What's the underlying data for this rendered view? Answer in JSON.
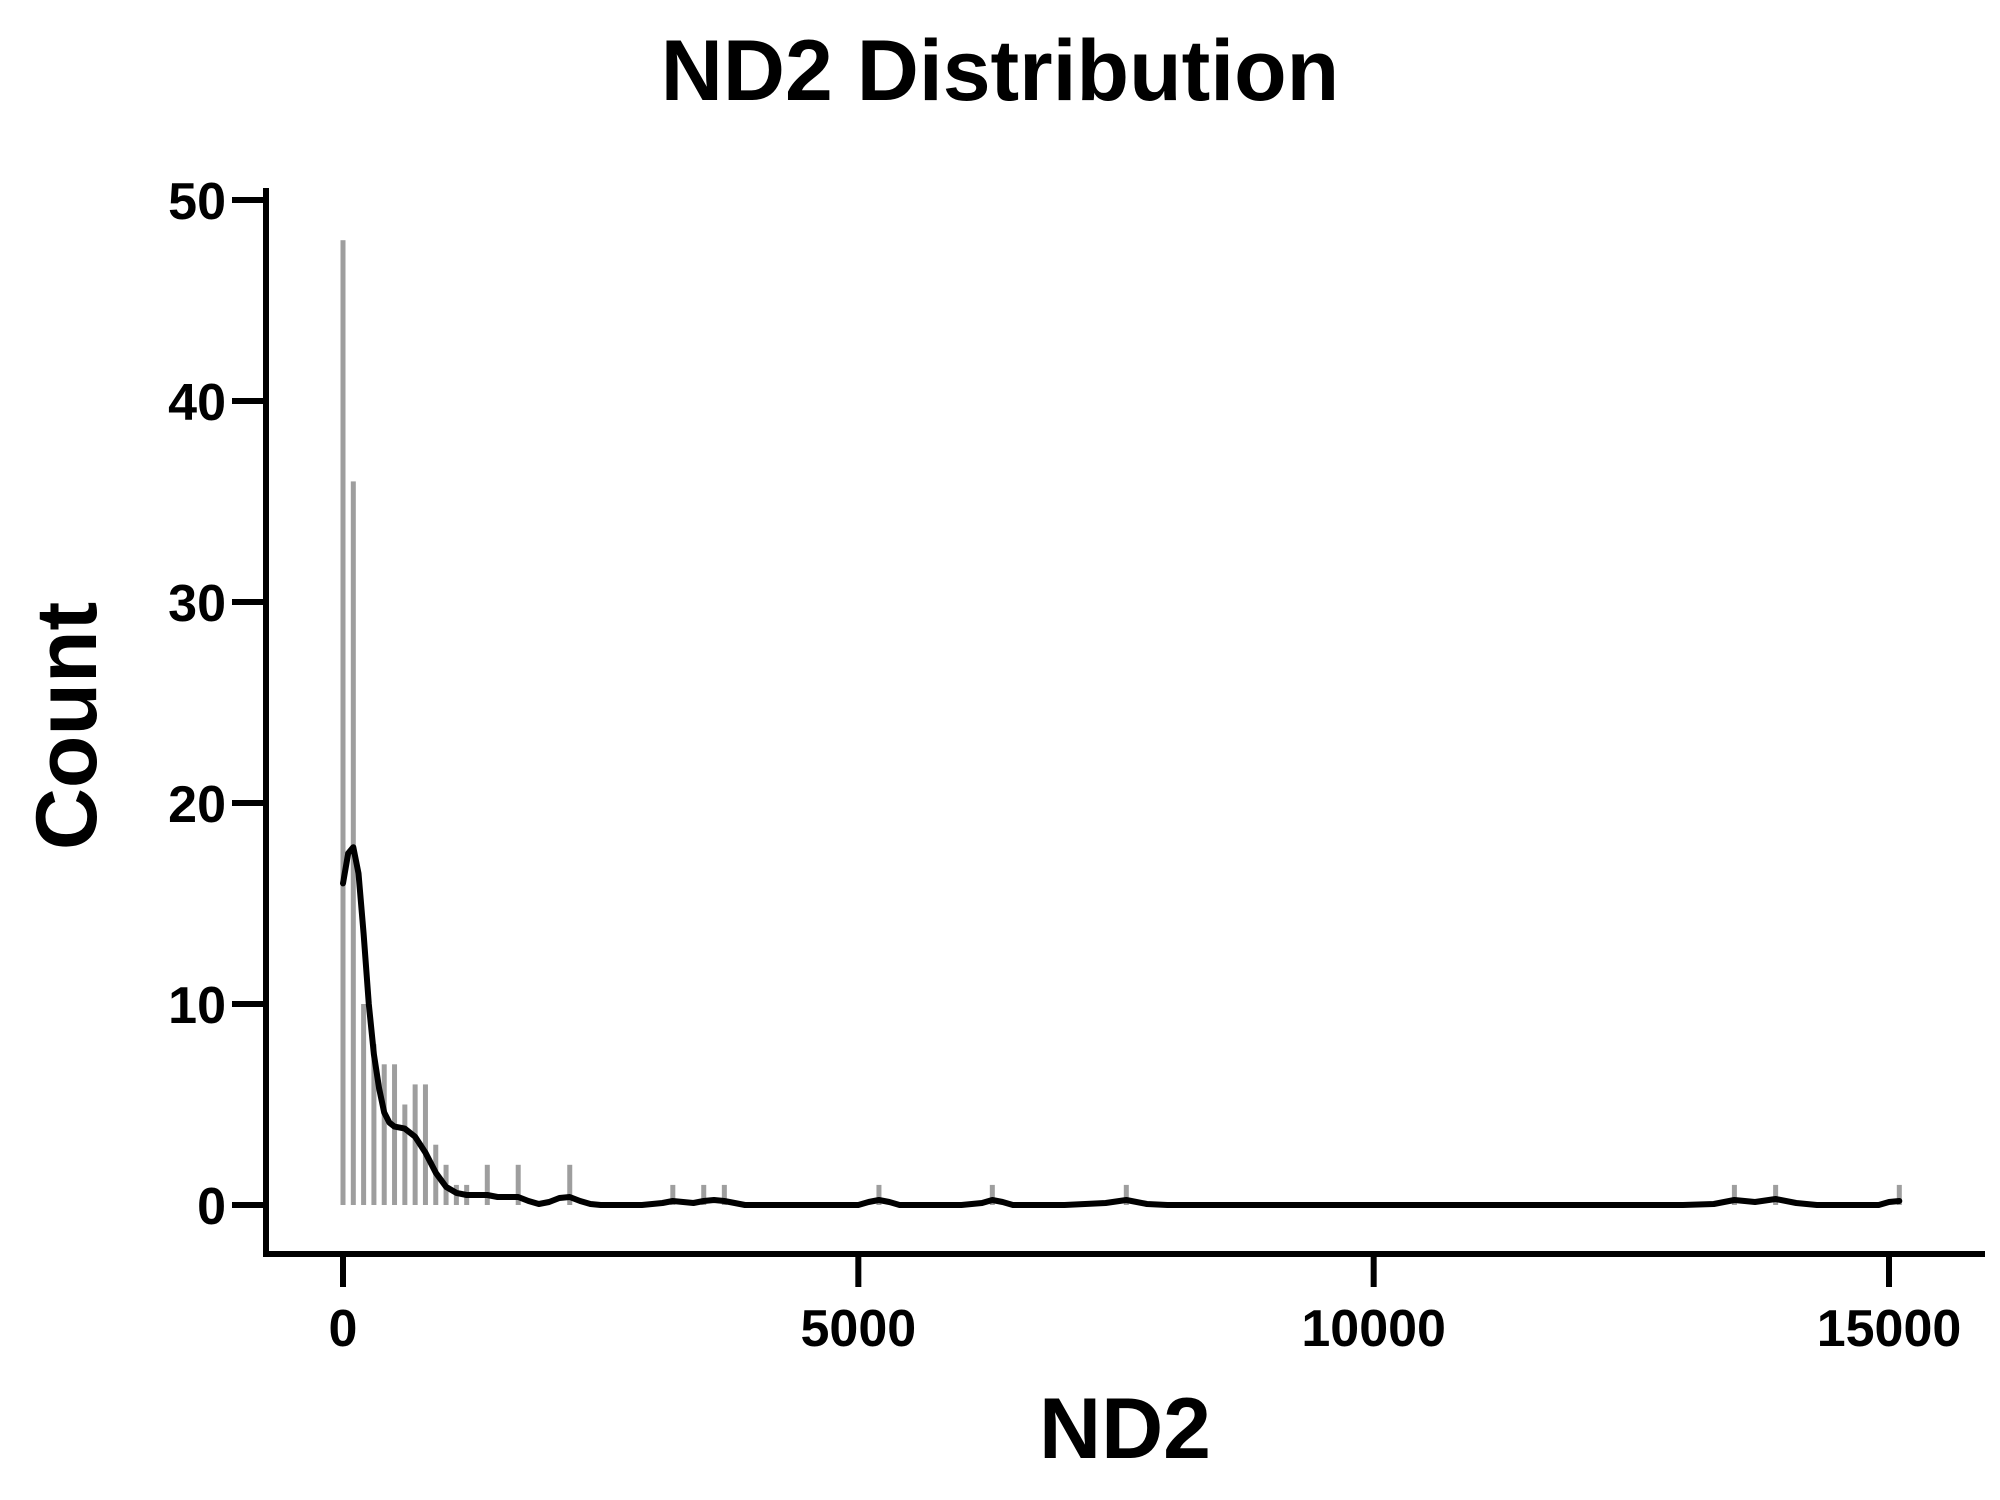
{
  "chart_data": {
    "type": "bar",
    "title": "ND2 Distribution",
    "xlabel": "ND2",
    "ylabel": "Count",
    "xlim": [
      -800,
      15900
    ],
    "ylim": [
      -2.3,
      51
    ],
    "xticks": [
      0,
      5000,
      10000,
      15000
    ],
    "xtick_labels": [
      "0",
      "5000",
      "10000",
      "15000"
    ],
    "yticks": [
      0,
      10,
      20,
      30,
      40,
      50
    ],
    "ytick_labels": [
      "0",
      "10",
      "20",
      "30",
      "40",
      "50"
    ],
    "grid": false,
    "bar_color": "#9e9e9e",
    "curve_color": "#000000",
    "series": [
      {
        "name": "histogram",
        "type": "bar",
        "x": [
          0,
          100,
          200,
          300,
          400,
          500,
          600,
          700,
          800,
          900,
          1000,
          1100,
          1200,
          1400,
          1700,
          2200,
          3200,
          3500,
          3700,
          5200,
          6300,
          7600,
          13500,
          13900,
          15100
        ],
        "values": [
          48,
          36,
          10,
          8,
          7,
          7,
          5,
          6,
          6,
          3,
          2,
          1,
          1,
          2,
          2,
          2,
          1,
          1,
          1,
          1,
          1,
          1,
          1,
          1,
          1
        ]
      },
      {
        "name": "density",
        "type": "line",
        "x": [
          0,
          50,
          100,
          150,
          200,
          250,
          300,
          350,
          400,
          450,
          500,
          600,
          700,
          800,
          900,
          1000,
          1100,
          1200,
          1300,
          1400,
          1500,
          1600,
          1700,
          1800,
          1900,
          2000,
          2100,
          2200,
          2300,
          2400,
          2500,
          2700,
          2900,
          3100,
          3200,
          3300,
          3400,
          3500,
          3600,
          3700,
          3800,
          3900,
          4000,
          5000,
          5100,
          5200,
          5300,
          5400,
          5500,
          6000,
          6200,
          6300,
          6400,
          6500,
          7000,
          7400,
          7600,
          7800,
          8000,
          13000,
          13300,
          13500,
          13700,
          13900,
          14100,
          14300,
          14900,
          15000,
          15100
        ],
        "values": [
          16,
          17.5,
          17.8,
          16.5,
          13.5,
          10,
          7.5,
          5.8,
          4.6,
          4.1,
          3.9,
          3.8,
          3.4,
          2.6,
          1.6,
          0.9,
          0.6,
          0.5,
          0.5,
          0.5,
          0.4,
          0.4,
          0.4,
          0.2,
          0.05,
          0.15,
          0.35,
          0.4,
          0.2,
          0.05,
          0,
          0,
          0,
          0.1,
          0.2,
          0.15,
          0.1,
          0.2,
          0.25,
          0.2,
          0.1,
          0,
          0,
          0,
          0.15,
          0.25,
          0.15,
          0,
          0,
          0,
          0.1,
          0.25,
          0.15,
          0,
          0,
          0.1,
          0.25,
          0.05,
          0,
          0,
          0.05,
          0.25,
          0.15,
          0.3,
          0.1,
          0,
          0,
          0.15,
          0.2
        ]
      }
    ]
  }
}
